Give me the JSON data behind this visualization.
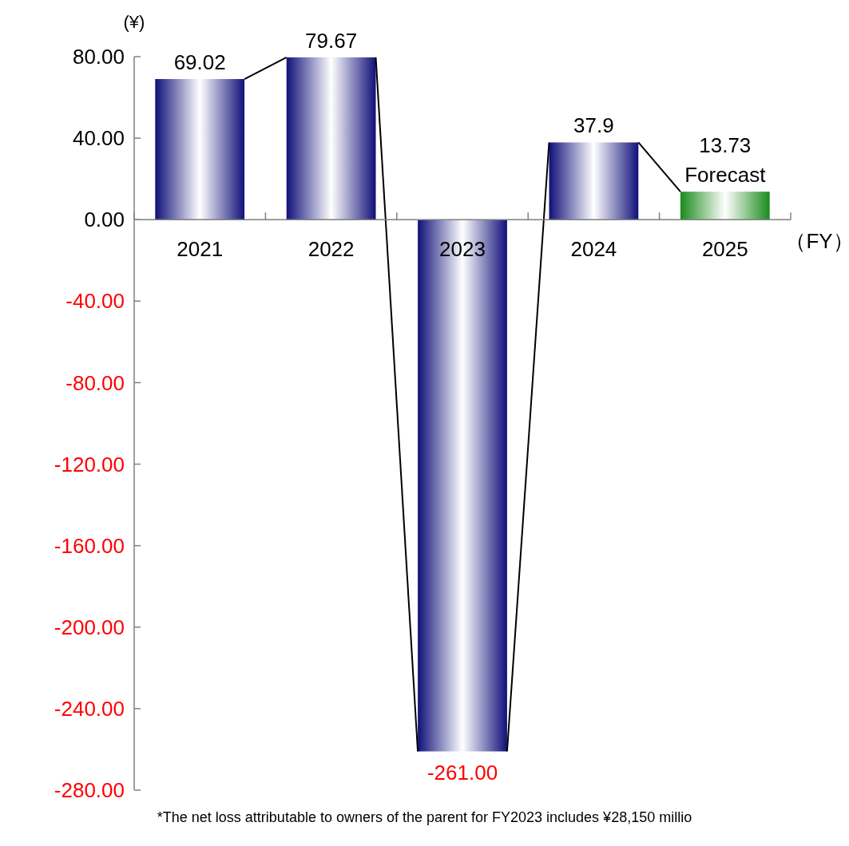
{
  "chart_data": {
    "type": "bar",
    "ylabel": "(¥)",
    "xlabel": "（FY）",
    "categories": [
      "2021",
      "2022",
      "2023",
      "2024",
      "2025"
    ],
    "values": [
      69.02,
      79.67,
      -261.0,
      37.9,
      13.73
    ],
    "colors": [
      "#10107a",
      "#10107a",
      "#10107a",
      "#10107a",
      "#1a8a1a"
    ],
    "value_labels": [
      "69.02",
      "79.67",
      "-261.00",
      "37.9",
      "13.73"
    ],
    "ylim": [
      -280,
      80
    ],
    "yticks": [
      {
        "value": 80,
        "label": "80.00"
      },
      {
        "value": 40,
        "label": "40.00"
      },
      {
        "value": 0,
        "label": "0.00"
      },
      {
        "value": -40,
        "label": "-40.00"
      },
      {
        "value": -80,
        "label": "-80.00"
      },
      {
        "value": -120,
        "label": "-120.00"
      },
      {
        "value": -160,
        "label": "-160.00"
      },
      {
        "value": -200,
        "label": "-200.00"
      },
      {
        "value": -240,
        "label": "-240.00"
      },
      {
        "value": -280,
        "label": "-280.00"
      }
    ],
    "grid": false,
    "annotations": [
      {
        "text": "Forecast",
        "x": "2025",
        "y": 13.73
      },
      "*The net loss attributable to owners of the parent for FY2023 includes ¥28,150 millio"
    ]
  }
}
